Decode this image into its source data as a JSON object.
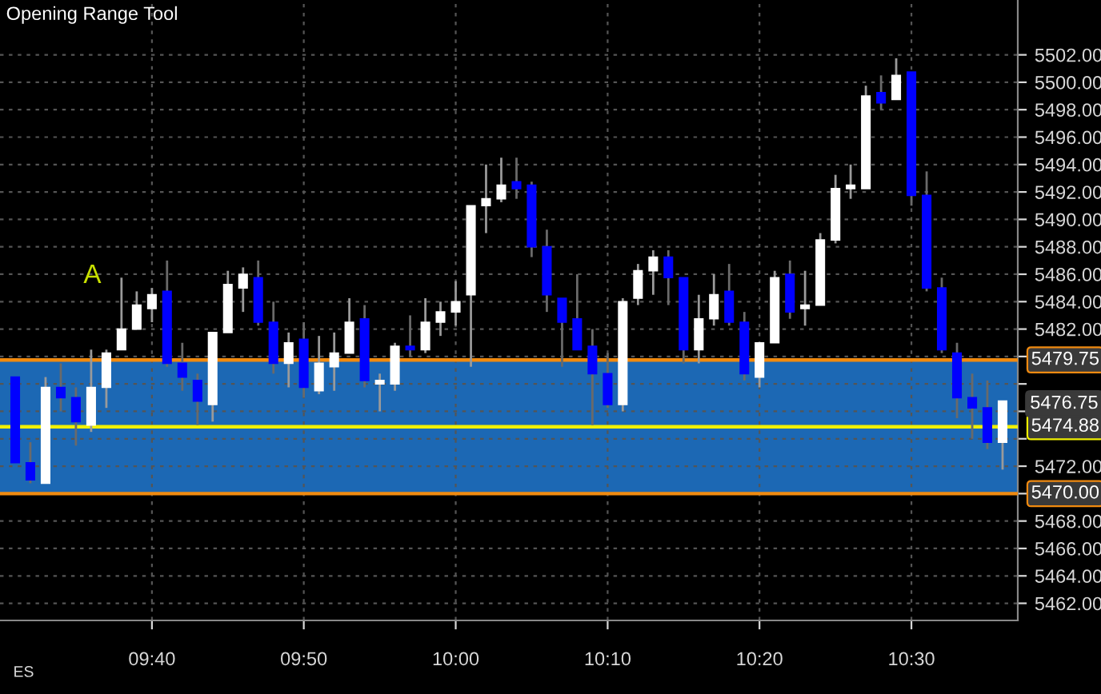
{
  "chart_data": {
    "type": "candlestick",
    "title": "Opening Range Tool",
    "x": [
      9.5167,
      9.5333,
      9.55,
      9.5667,
      9.5833,
      9.6,
      9.6167,
      9.6333,
      9.65,
      9.6667,
      9.6833,
      9.7,
      9.7167,
      9.7333,
      9.75,
      9.7667,
      9.7833,
      9.8,
      9.8167,
      9.8333,
      9.85,
      9.8667,
      9.8833,
      9.9,
      9.9167,
      9.9333,
      9.95,
      9.9667,
      9.9833,
      10,
      10.0167,
      10.0333,
      10.05,
      10.0667,
      10.0833,
      10.1,
      10.1167,
      10.1333,
      10.15,
      10.1667,
      10.1833,
      10.2,
      10.2167,
      10.2333,
      10.25,
      10.2667,
      10.2833,
      10.3,
      10.3167,
      10.3333,
      10.35,
      10.3667,
      10.3833,
      10.4,
      10.4167,
      10.4333,
      10.45,
      10.4667,
      10.4833,
      10.5,
      10.5167,
      10.5333,
      10.55,
      10.5667,
      10.5833,
      10.6
    ],
    "ohlc": [
      [
        5478.5,
        5478.5,
        5472.25,
        5472.25
      ],
      [
        5472.25,
        5473.75,
        5470.75,
        5471
      ],
      [
        5470.75,
        5478.5,
        5470.75,
        5477.75
      ],
      [
        5477.75,
        5479.5,
        5476,
        5477
      ],
      [
        5477,
        5477.75,
        5473.5,
        5475.25
      ],
      [
        5475,
        5480.5,
        5474.5,
        5477.75
      ],
      [
        5477.75,
        5480.5,
        5476.25,
        5480.25
      ],
      [
        5480.5,
        5485.75,
        5480.5,
        5482
      ],
      [
        5482,
        5484.75,
        5482,
        5483.75
      ],
      [
        5483.5,
        5485,
        5482.5,
        5484.5
      ],
      [
        5484.75,
        5487,
        5479.25,
        5479.5
      ],
      [
        5479.5,
        5481,
        5477.5,
        5478.5
      ],
      [
        5478.25,
        5478.75,
        5475,
        5476.75
      ],
      [
        5476.5,
        5481.75,
        5475.25,
        5481.75
      ],
      [
        5481.75,
        5486.25,
        5481.75,
        5485.25
      ],
      [
        5485,
        5486.5,
        5483.25,
        5486
      ],
      [
        5485.75,
        5487,
        5482.25,
        5482.5
      ],
      [
        5482.5,
        5484,
        5478.75,
        5479.5
      ],
      [
        5479.5,
        5481.75,
        5477.75,
        5481
      ],
      [
        5481.25,
        5482.5,
        5477,
        5477.75
      ],
      [
        5477.5,
        5481.5,
        5477.25,
        5479.5
      ],
      [
        5479.25,
        5481.75,
        5477.5,
        5480.25
      ],
      [
        5480.25,
        5484.25,
        5480.25,
        5482.5
      ],
      [
        5482.75,
        5483.75,
        5477.75,
        5478.25
      ],
      [
        5478,
        5478.75,
        5476,
        5478.25
      ],
      [
        5478,
        5481,
        5477.5,
        5480.75
      ],
      [
        5480.75,
        5483,
        5480,
        5480.5
      ],
      [
        5480.5,
        5484.25,
        5480.25,
        5482.5
      ],
      [
        5482.5,
        5484,
        5481.5,
        5483.25
      ],
      [
        5483.25,
        5485.5,
        5482.25,
        5484
      ],
      [
        5484.5,
        5491,
        5479.25,
        5491
      ],
      [
        5491,
        5494,
        5489,
        5491.5
      ],
      [
        5491.5,
        5494.5,
        5491.25,
        5492.5
      ],
      [
        5492.75,
        5494.5,
        5491.5,
        5492.25
      ],
      [
        5492.5,
        5492.75,
        5487.25,
        5488
      ],
      [
        5488,
        5489.25,
        5483.25,
        5484.5
      ],
      [
        5484.25,
        5484.25,
        5479.25,
        5482.5
      ],
      [
        5482.75,
        5486,
        5480.5,
        5480.5
      ],
      [
        5480.75,
        5482,
        5475,
        5478.75
      ],
      [
        5478.75,
        5480.25,
        5476.25,
        5476.5
      ],
      [
        5476.5,
        5484.25,
        5476,
        5484
      ],
      [
        5484.25,
        5486.75,
        5483.75,
        5486.25
      ],
      [
        5486.25,
        5487.75,
        5484.5,
        5487.25
      ],
      [
        5487.25,
        5487.75,
        5483.75,
        5485.75
      ],
      [
        5485.75,
        5485.75,
        5479.5,
        5480.5
      ],
      [
        5480.5,
        5484.5,
        5479.5,
        5482.75
      ],
      [
        5482.75,
        5486,
        5482.25,
        5484.5
      ],
      [
        5484.75,
        5486.75,
        5482.25,
        5482.5
      ],
      [
        5482.5,
        5483.25,
        5478.25,
        5478.75
      ],
      [
        5478.5,
        5481,
        5477.75,
        5481
      ],
      [
        5481,
        5486.25,
        5481,
        5485.75
      ],
      [
        5486,
        5487,
        5482.75,
        5483.25
      ],
      [
        5483.5,
        5486.25,
        5482.25,
        5483.75
      ],
      [
        5483.75,
        5489,
        5483.75,
        5488.5
      ],
      [
        5488.5,
        5493.25,
        5488.25,
        5492.25
      ],
      [
        5492.25,
        5494,
        5491.5,
        5492.5
      ],
      [
        5492.25,
        5499.75,
        5492.25,
        5499
      ],
      [
        5499.25,
        5500.5,
        5498,
        5498.5
      ],
      [
        5498.75,
        5501.75,
        5498.75,
        5500.5
      ],
      [
        5500.75,
        5500.75,
        5491,
        5491.75
      ],
      [
        5491.75,
        5493.5,
        5484.75,
        5485
      ],
      [
        5485,
        5485.75,
        5480.25,
        5480.5
      ],
      [
        5480.25,
        5481,
        5475.5,
        5477
      ],
      [
        5477,
        5478.75,
        5474,
        5476.25
      ],
      [
        5476.25,
        5478.25,
        5473.25,
        5473.75
      ],
      [
        5473.75,
        5476.75,
        5471.75,
        5476.75
      ]
    ],
    "colors": [
      "#0000ff",
      "#0000ff",
      "#ffffff",
      "#0000ff",
      "#0000ff",
      "#ffffff",
      "#ffffff",
      "#ffffff",
      "#ffffff",
      "#ffffff",
      "#0000ff",
      "#0000ff",
      "#0000ff",
      "#ffffff",
      "#ffffff",
      "#ffffff",
      "#0000ff",
      "#0000ff",
      "#ffffff",
      "#0000ff",
      "#ffffff",
      "#ffffff",
      "#ffffff",
      "#0000ff",
      "#ffffff",
      "#ffffff",
      "#0000ff",
      "#ffffff",
      "#ffffff",
      "#ffffff",
      "#ffffff",
      "#ffffff",
      "#ffffff",
      "#0000ff",
      "#0000ff",
      "#0000ff",
      "#0000ff",
      "#0000ff",
      "#0000ff",
      "#0000ff",
      "#ffffff",
      "#ffffff",
      "#ffffff",
      "#0000ff",
      "#0000ff",
      "#ffffff",
      "#ffffff",
      "#0000ff",
      "#0000ff",
      "#ffffff",
      "#ffffff",
      "#0000ff",
      "#ffffff",
      "#ffffff",
      "#ffffff",
      "#ffffff",
      "#ffffff",
      "#0000ff",
      "#ffffff",
      "#0000ff",
      "#0000ff",
      "#0000ff",
      "#0000ff",
      "#0000ff",
      "#0000ff",
      "#ffffff"
    ],
    "xlim": [
      9.5,
      10.6167
    ],
    "xticks": [
      {
        "value": 9.6667,
        "label": "09:40"
      },
      {
        "value": 9.8333,
        "label": "09:50"
      },
      {
        "value": 10,
        "label": "10:00"
      },
      {
        "value": 10.1667,
        "label": "10:10"
      },
      {
        "value": 10.3333,
        "label": "10:20"
      },
      {
        "value": 10.5,
        "label": "10:30"
      }
    ],
    "ylim": [
      5460.75,
      5506
    ],
    "yticks": [
      {
        "value": 5462,
        "label": "5462.00"
      },
      {
        "value": 5464,
        "label": "5464.00"
      },
      {
        "value": 5466,
        "label": "5466.00"
      },
      {
        "value": 5468,
        "label": "5468.00"
      },
      {
        "value": 5470,
        "label": null
      },
      {
        "value": 5472,
        "label": "5472.00"
      },
      {
        "value": 5474,
        "label": null
      },
      {
        "value": 5476,
        "label": null
      },
      {
        "value": 5478,
        "label": null
      },
      {
        "value": 5480,
        "label": null
      },
      {
        "value": 5482,
        "label": "5482.00"
      },
      {
        "value": 5484,
        "label": "5484.00"
      },
      {
        "value": 5486,
        "label": "5486.00"
      },
      {
        "value": 5488,
        "label": "5488.00"
      },
      {
        "value": 5490,
        "label": "5490.00"
      },
      {
        "value": 5492,
        "label": "5492.00"
      },
      {
        "value": 5494,
        "label": "5494.00"
      },
      {
        "value": 5496,
        "label": "5496.00"
      },
      {
        "value": 5498,
        "label": "5498.00"
      },
      {
        "value": 5500,
        "label": "5500.00"
      },
      {
        "value": 5502,
        "label": "5502.00"
      }
    ],
    "bands": [
      {
        "axis": "y",
        "from": 5470,
        "to": 5479.75,
        "color": "#1c68b4"
      }
    ],
    "ref_lines": [
      {
        "axis": "y",
        "value": 5479.75,
        "label": "5479.75",
        "color": "#f08a10"
      },
      {
        "axis": "y",
        "value": 5474.88,
        "label": "5474.88",
        "color": "#f0f000"
      },
      {
        "axis": "y",
        "value": 5470,
        "label": "5470.00",
        "color": "#f08a10"
      }
    ],
    "annotations": [
      "A",
      "5476.75",
      "ES"
    ],
    "grid": true
  }
}
